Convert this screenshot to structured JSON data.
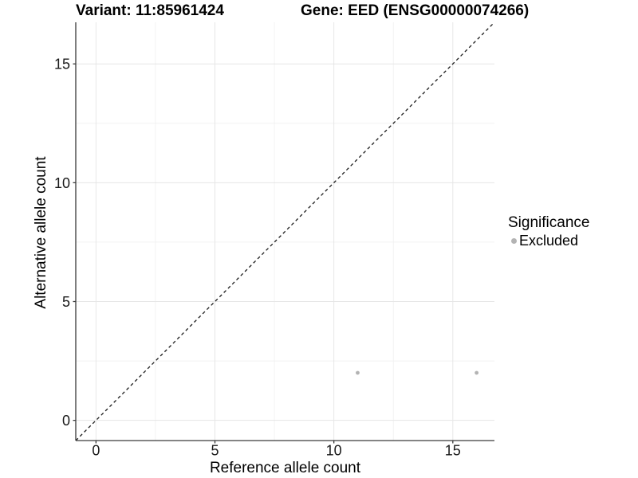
{
  "chart_data": {
    "type": "scatter",
    "title_left": "Variant: 11:85961424",
    "title_right": "Gene: EED (ENSG00000074266)",
    "xlabel": "Reference allele count",
    "ylabel": "Alternative allele count",
    "xlim": [
      -0.85,
      16.75
    ],
    "ylim": [
      -0.85,
      16.75
    ],
    "x_major_ticks": [
      0,
      5,
      10,
      15
    ],
    "y_major_ticks": [
      0,
      5,
      10,
      15
    ],
    "x_minor_ticks": [
      2.5,
      7.5,
      12.5
    ],
    "y_minor_ticks": [
      2.5,
      7.5,
      12.5
    ],
    "grid": true,
    "identity_line": {
      "equation": "y = x",
      "style": "dashed",
      "color": "#1a1a1a"
    },
    "series": [
      {
        "name": "Excluded",
        "color": "#b3b3b3",
        "points": [
          {
            "x": 11,
            "y": 2
          },
          {
            "x": 16,
            "y": 2
          }
        ]
      }
    ],
    "legend": {
      "title": "Significance",
      "position": "right",
      "items": [
        {
          "label": "Excluded",
          "color": "#b3b3b3"
        }
      ]
    },
    "colors": {
      "background": "#ffffff",
      "grid_major": "#e6e6e6",
      "grid_minor": "#f2f2f2",
      "axis_line": "#3a3a3a",
      "tick_text": "#1a1a1a"
    }
  }
}
